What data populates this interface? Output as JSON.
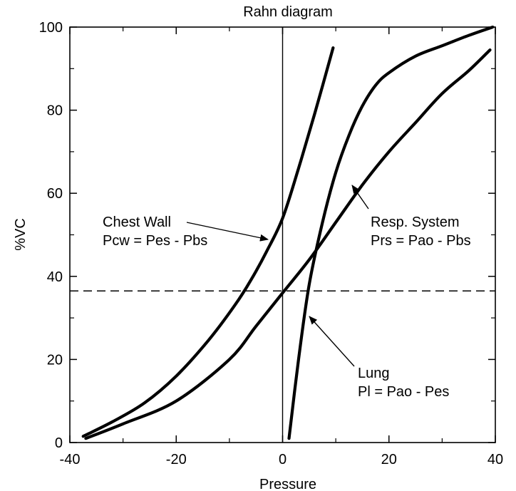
{
  "chart_data": {
    "type": "line",
    "title": "Rahn diagram",
    "xlabel": "Pressure",
    "ylabel": "%VC",
    "xlim": [
      -40,
      40
    ],
    "ylim": [
      0,
      100
    ],
    "x_ticks": [
      -40,
      -20,
      0,
      20,
      40
    ],
    "y_ticks": [
      0,
      20,
      40,
      60,
      80,
      100
    ],
    "x_tick_labels": [
      "-40",
      "-20",
      "0",
      "20",
      "40"
    ],
    "y_tick_labels": [
      "0",
      "20",
      "40",
      "60",
      "80",
      "100"
    ],
    "grid": false,
    "reference_lines": {
      "vertical_x": 0,
      "horizontal_dashed_y": 36.5
    },
    "series": [
      {
        "key": "chest_wall",
        "x": [
          -37.5,
          -32,
          -26,
          -20,
          -14,
          -9,
          -6,
          -3,
          0,
          3,
          6,
          9.5
        ],
        "y": [
          1.5,
          5,
          9.5,
          16,
          24.5,
          33,
          39,
          46,
          54,
          66,
          79,
          95
        ]
      },
      {
        "key": "resp_system",
        "x": [
          -37,
          -30,
          -20,
          -10,
          -5,
          0,
          5,
          10,
          15,
          20,
          25,
          30,
          35,
          39
        ],
        "y": [
          1,
          4.5,
          10,
          20,
          28,
          36,
          44,
          53,
          62,
          70,
          77,
          84,
          89.5,
          94.5
        ]
      },
      {
        "key": "lung",
        "x": [
          1.2,
          3,
          5,
          7.5,
          10,
          12.5,
          15,
          17.5,
          20,
          25,
          30,
          35,
          39.5
        ],
        "y": [
          1,
          20,
          38,
          53,
          65,
          74,
          81,
          86,
          89,
          93,
          95.5,
          98,
          100
        ]
      }
    ],
    "annotations": [
      {
        "key": "chest_wall",
        "lines": [
          "Chest Wall",
          "Pcw = Pes - Pbs"
        ]
      },
      {
        "key": "resp_system",
        "lines": [
          "Resp. System",
          "Prs = Pao - Pbs"
        ]
      },
      {
        "key": "lung",
        "lines": [
          "Lung",
          "Pl = Pao - Pes"
        ]
      }
    ]
  }
}
